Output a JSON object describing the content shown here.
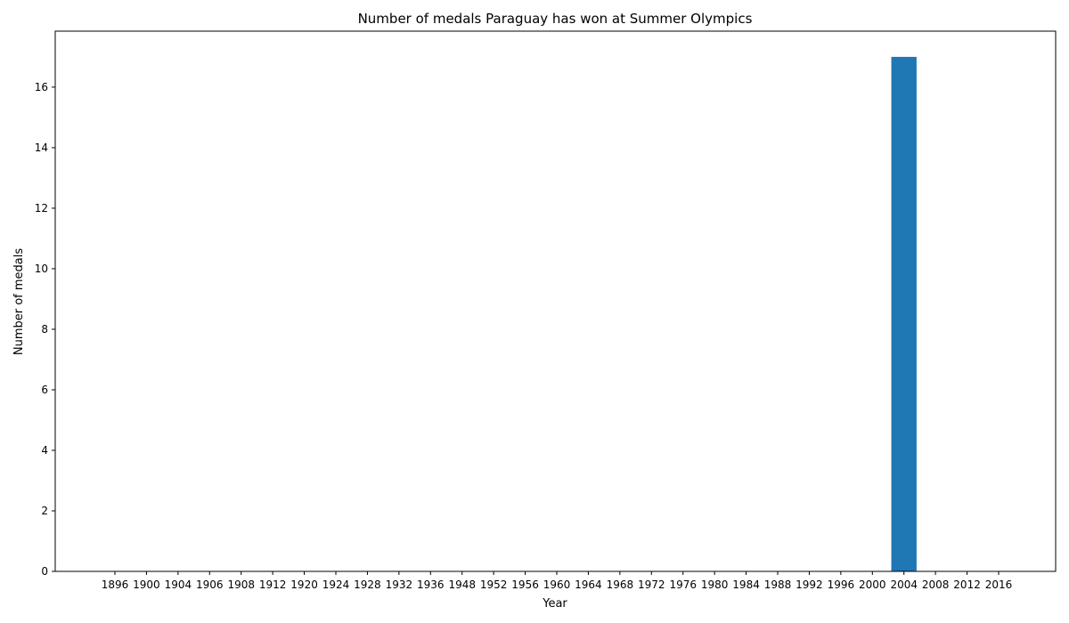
{
  "chart_data": {
    "type": "bar",
    "title": "Number of medals Paraguay has won at Summer Olympics",
    "xlabel": "Year",
    "ylabel": "Number of medals",
    "categories": [
      "1896",
      "1900",
      "1904",
      "1906",
      "1908",
      "1912",
      "1920",
      "1924",
      "1928",
      "1932",
      "1936",
      "1948",
      "1952",
      "1956",
      "1960",
      "1964",
      "1968",
      "1972",
      "1976",
      "1980",
      "1984",
      "1988",
      "1992",
      "1996",
      "2000",
      "2004",
      "2008",
      "2012",
      "2016"
    ],
    "values": [
      0,
      0,
      0,
      0,
      0,
      0,
      0,
      0,
      0,
      0,
      0,
      0,
      0,
      0,
      0,
      0,
      0,
      0,
      0,
      0,
      0,
      0,
      0,
      0,
      0,
      17,
      0,
      0,
      0
    ],
    "ylim": [
      0,
      17.85
    ],
    "yticks": [
      0,
      2,
      4,
      6,
      8,
      10,
      12,
      14,
      16
    ],
    "bar_color": "#1f77b4",
    "grid": false,
    "legend": "none"
  }
}
